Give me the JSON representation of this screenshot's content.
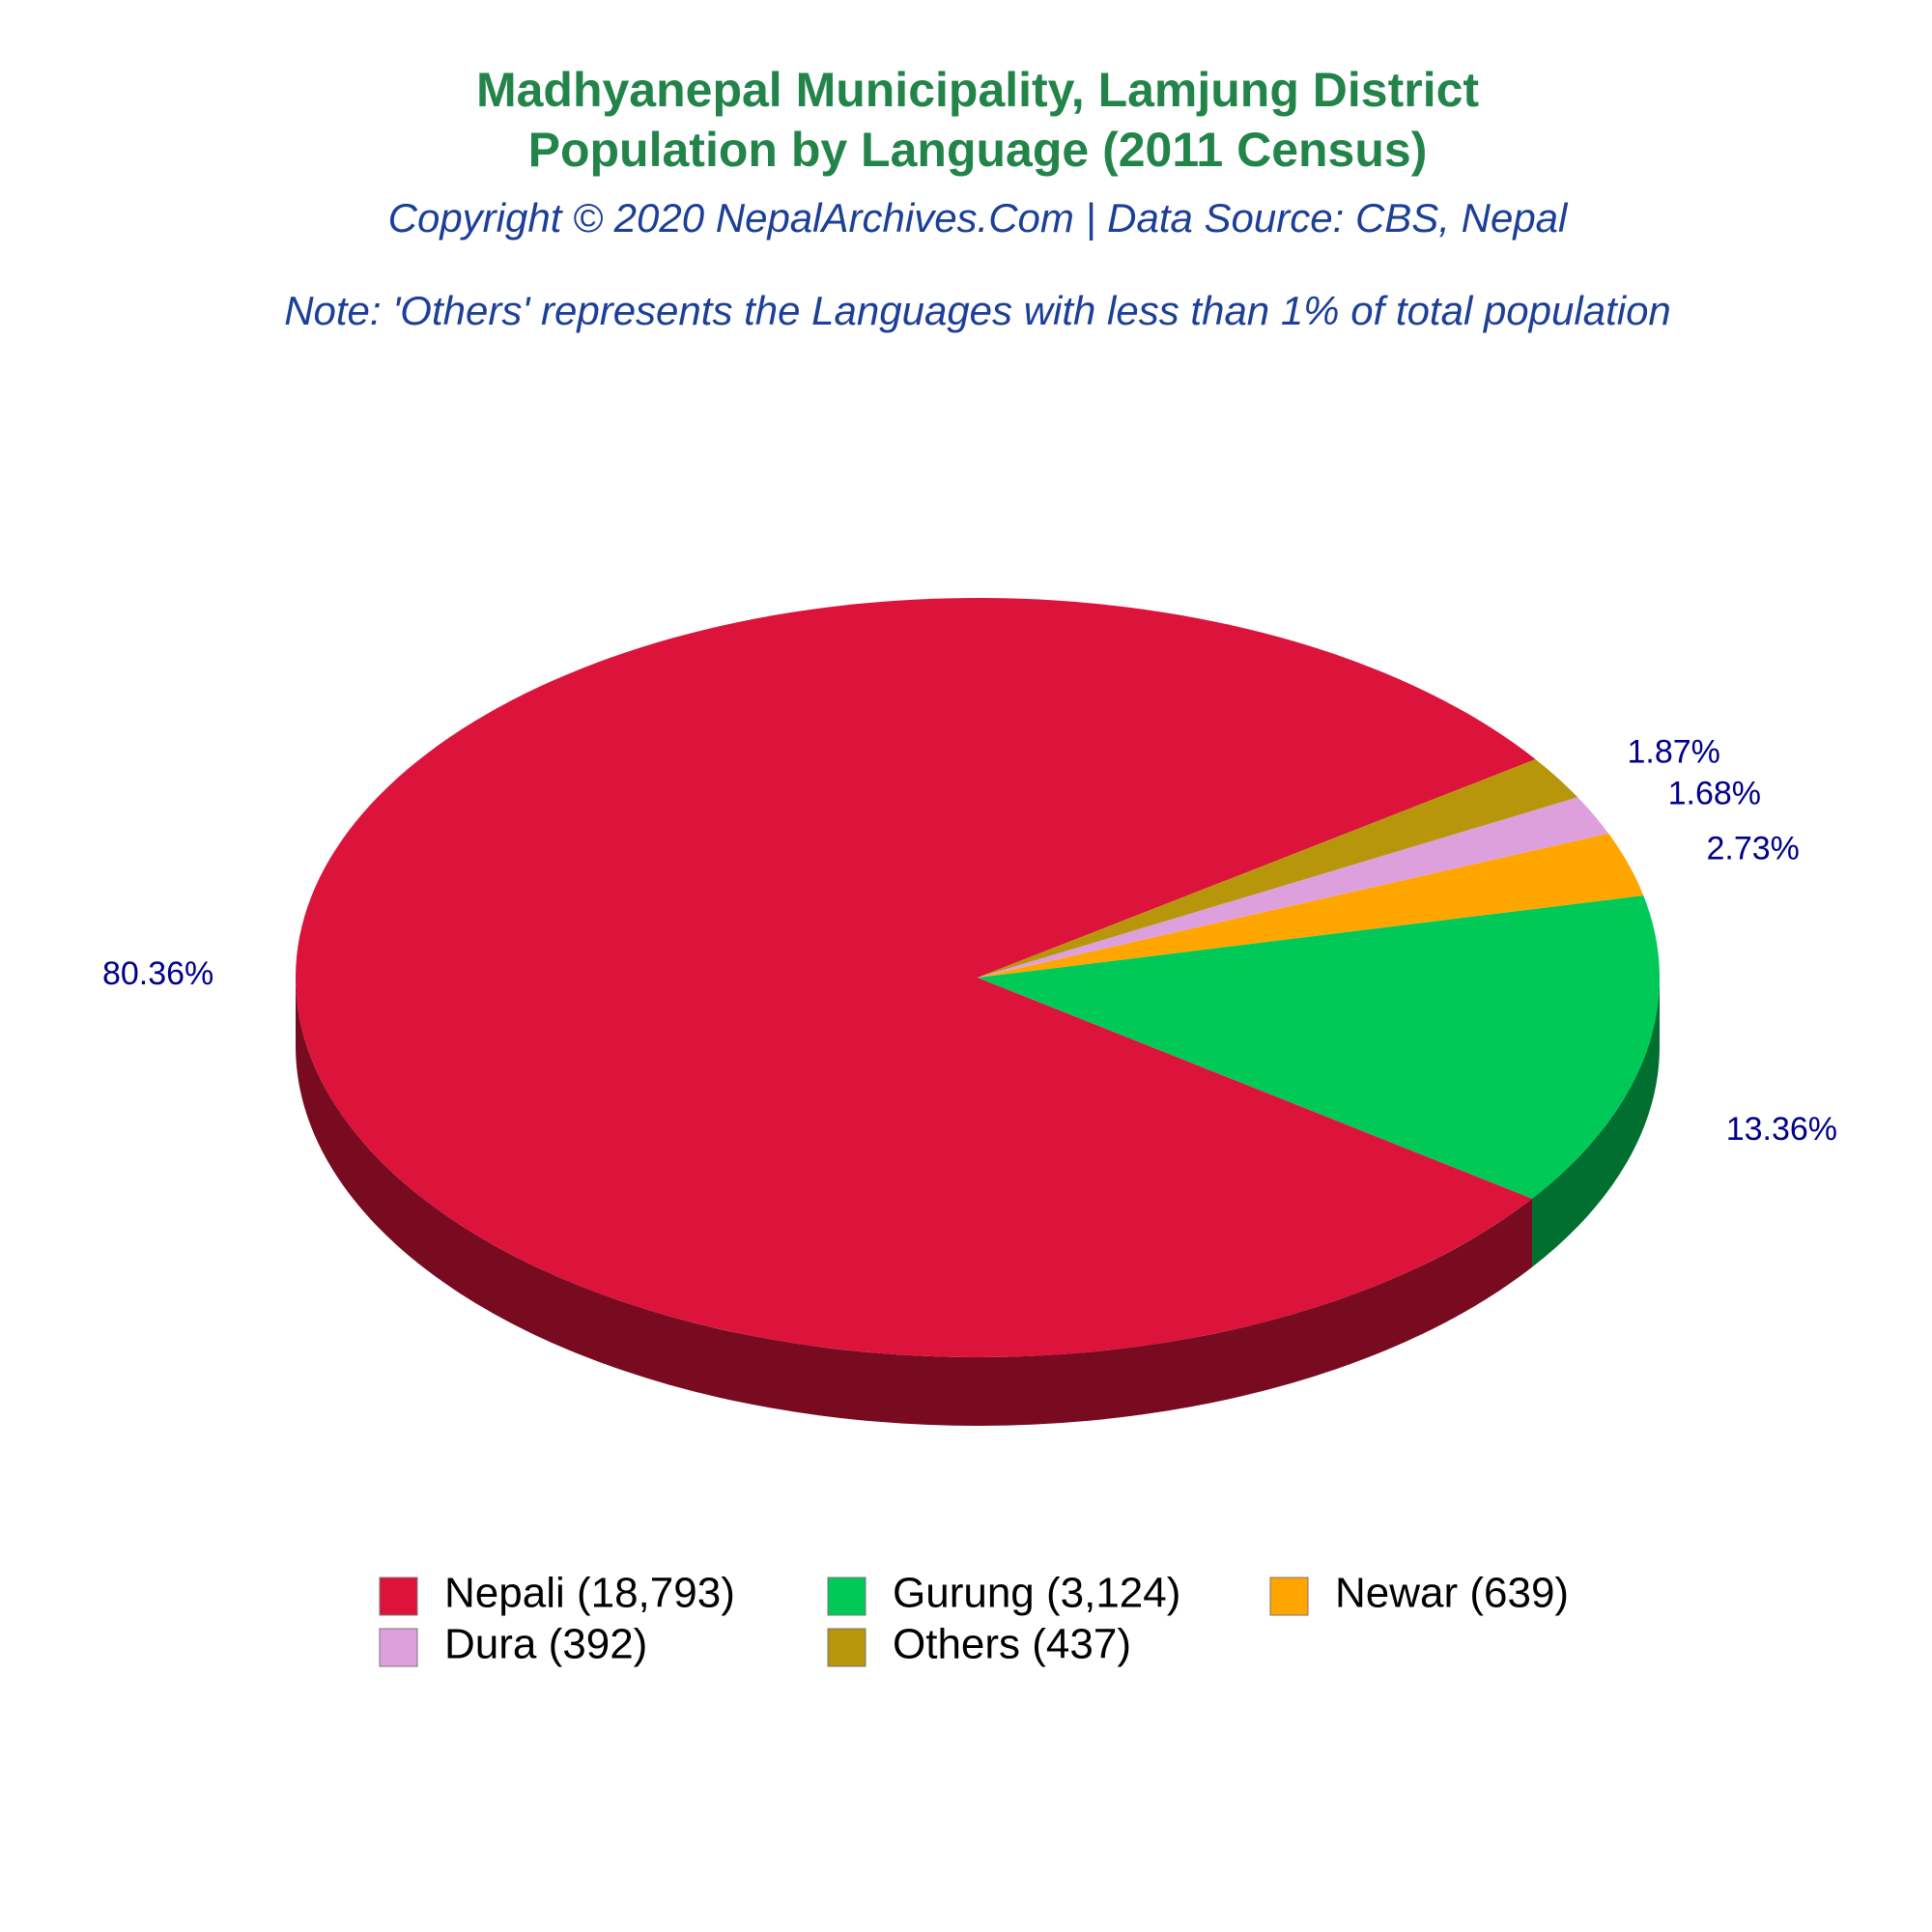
{
  "chart_data": {
    "type": "pie",
    "title": [
      "Madhyanepal Municipality, Lamjung District",
      "Population by Language (2011 Census)"
    ],
    "subtitle": "Copyright © 2020 NepalArchives.Com | Data Source: CBS, Nepal",
    "note": "Note: 'Others' represents the Languages with less than 1% of total population",
    "categories": [
      "Nepali (18,793)",
      "Gurung (3,124)",
      "Newar (639)",
      "Dura (392)",
      "Others (437)"
    ],
    "values": [
      80.36,
      13.36,
      2.73,
      1.68,
      1.87
    ],
    "value_labels": [
      "80.36%",
      "13.36%",
      "2.73%",
      "1.68%",
      "1.87%"
    ],
    "colors": [
      "#dc143c",
      "#00c957",
      "#ffa500",
      "#dda0dd",
      "#b8960c"
    ],
    "legend": "bottom"
  }
}
